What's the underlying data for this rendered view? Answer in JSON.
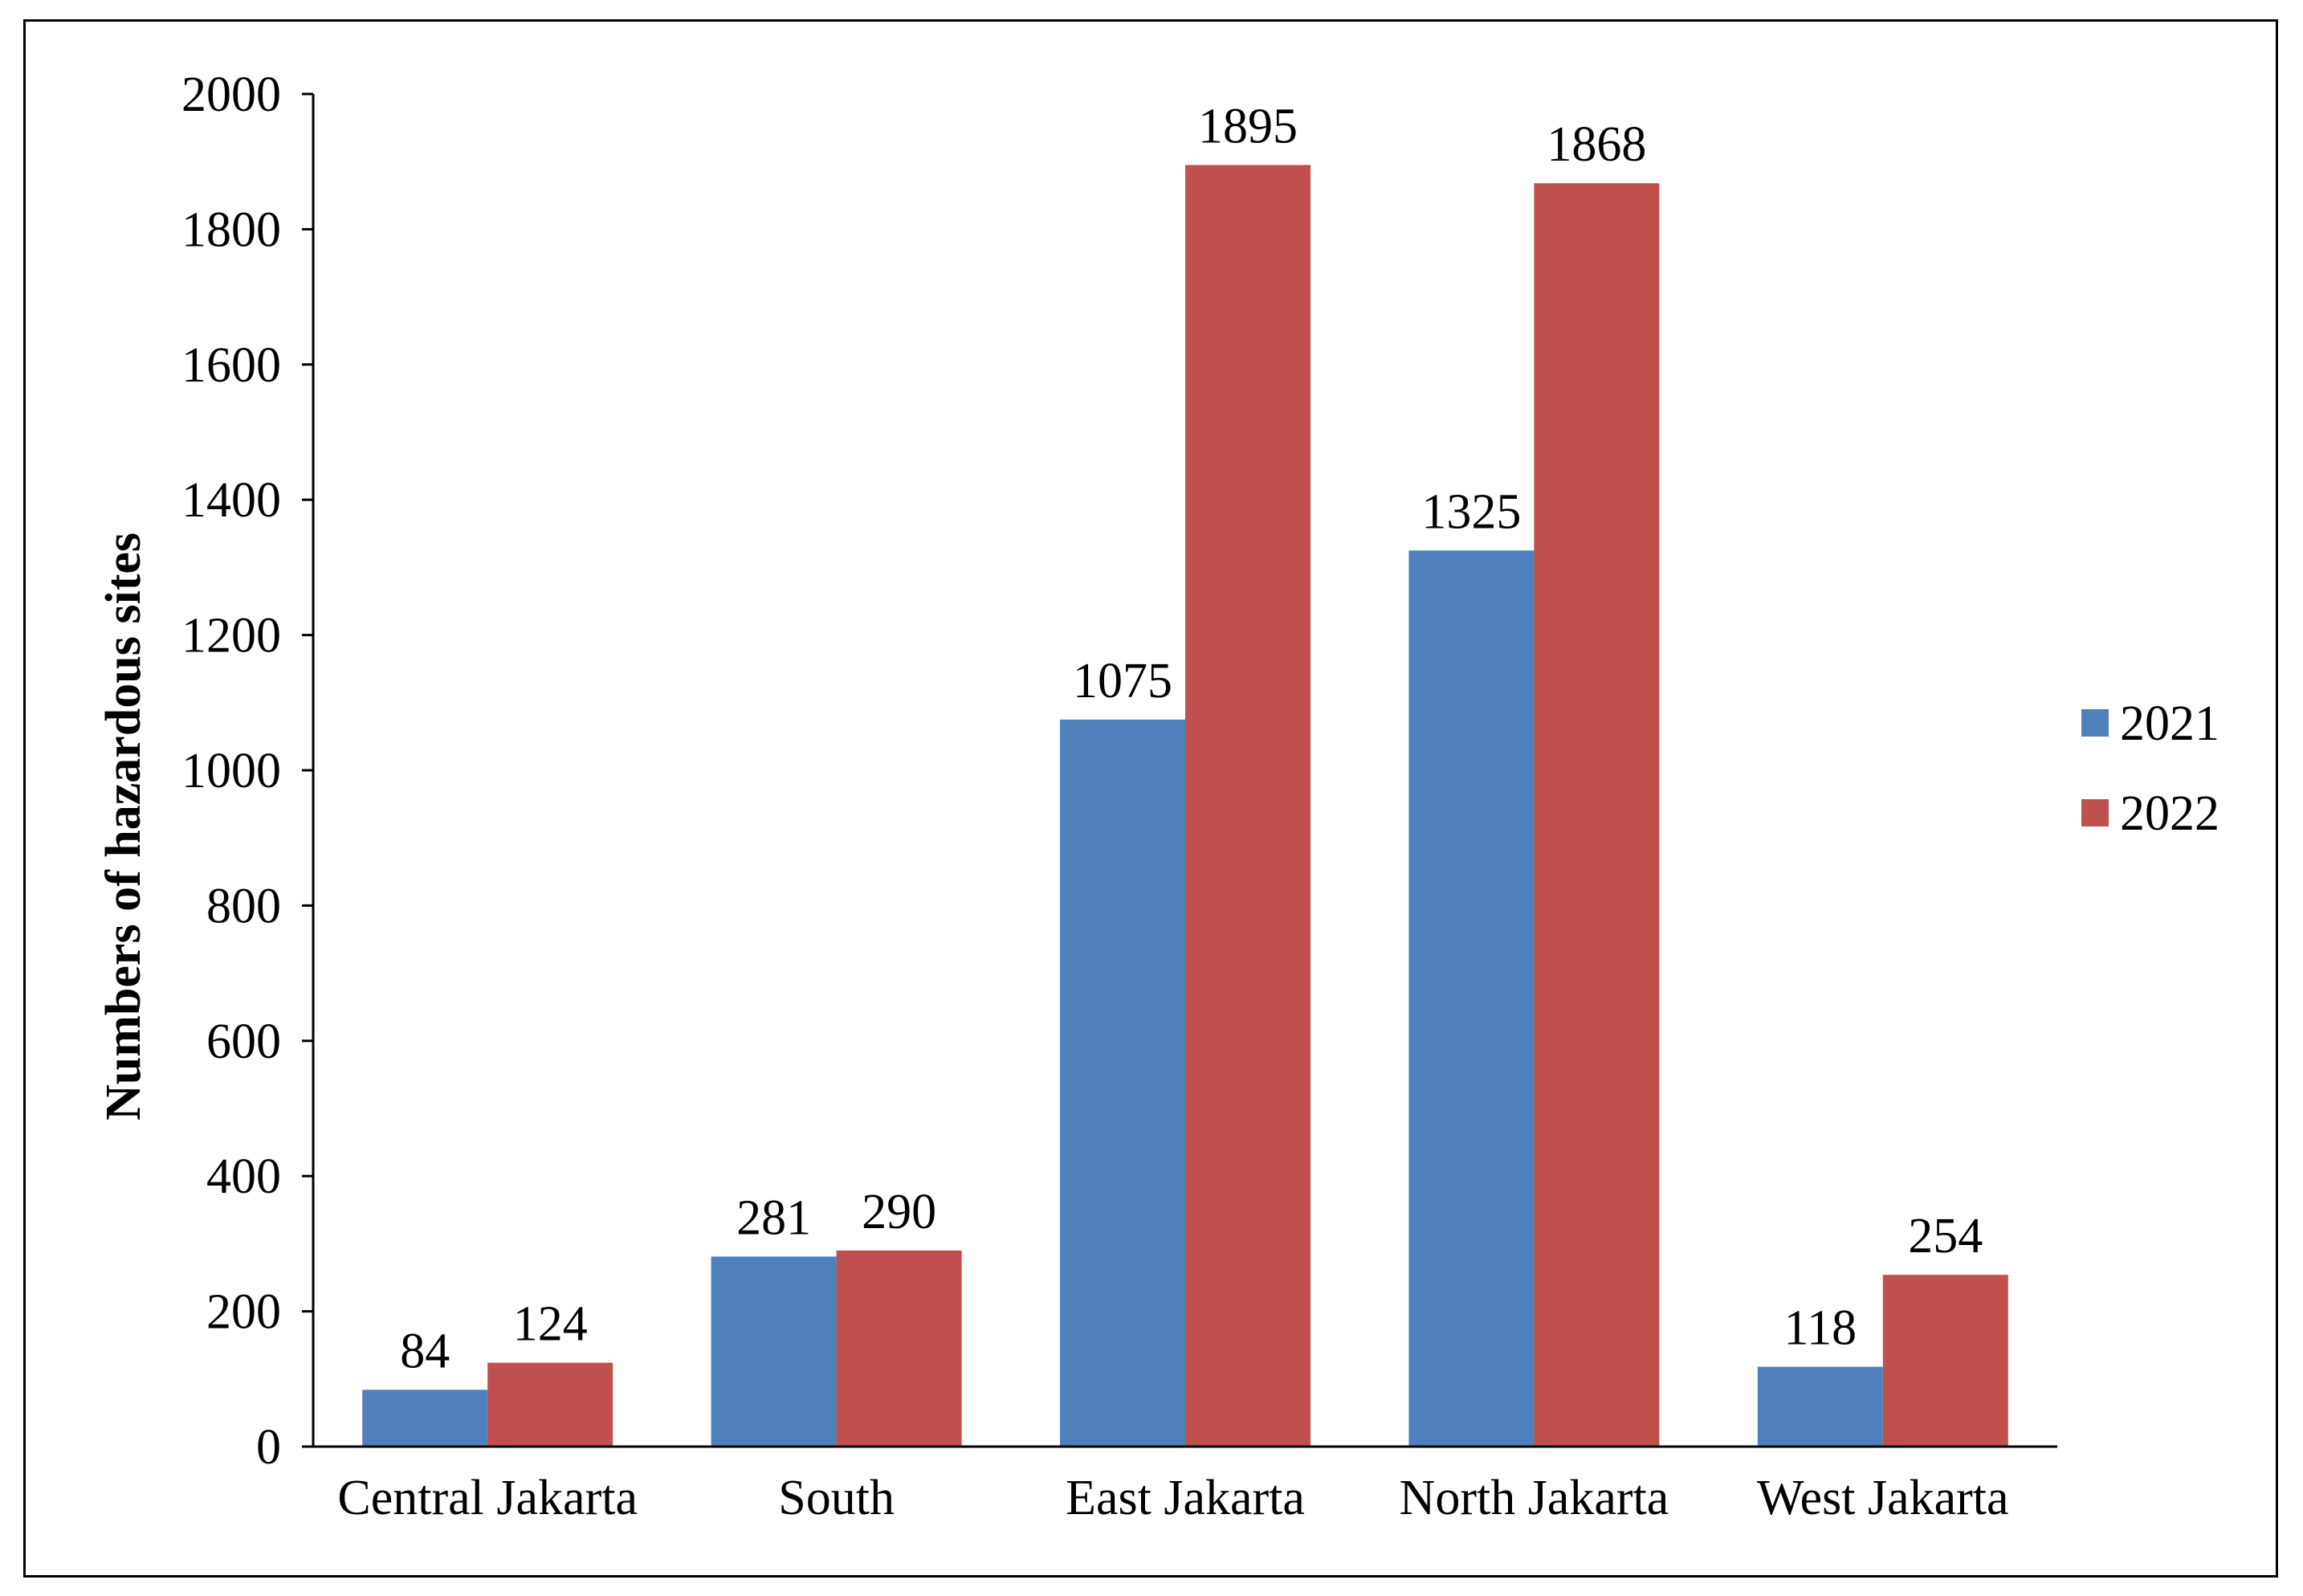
{
  "chart_data": {
    "type": "bar",
    "title": "",
    "xlabel": "",
    "ylabel": "Numbers of hazardous sites",
    "ylim": [
      0,
      2000
    ],
    "yticks": [
      0,
      200,
      400,
      600,
      800,
      1000,
      1200,
      1400,
      1600,
      1800,
      2000
    ],
    "grid": false,
    "legend_position": "right",
    "categories": [
      "Central Jakarta",
      "South",
      "East Jakarta",
      "North Jakarta",
      "West Jakarta"
    ],
    "series": [
      {
        "name": "2021",
        "color": "#4F81BD",
        "values": [
          84,
          281,
          1075,
          1325,
          118
        ]
      },
      {
        "name": "2022",
        "color": "#C0504D",
        "values": [
          124,
          290,
          1895,
          1868,
          254
        ]
      }
    ]
  }
}
